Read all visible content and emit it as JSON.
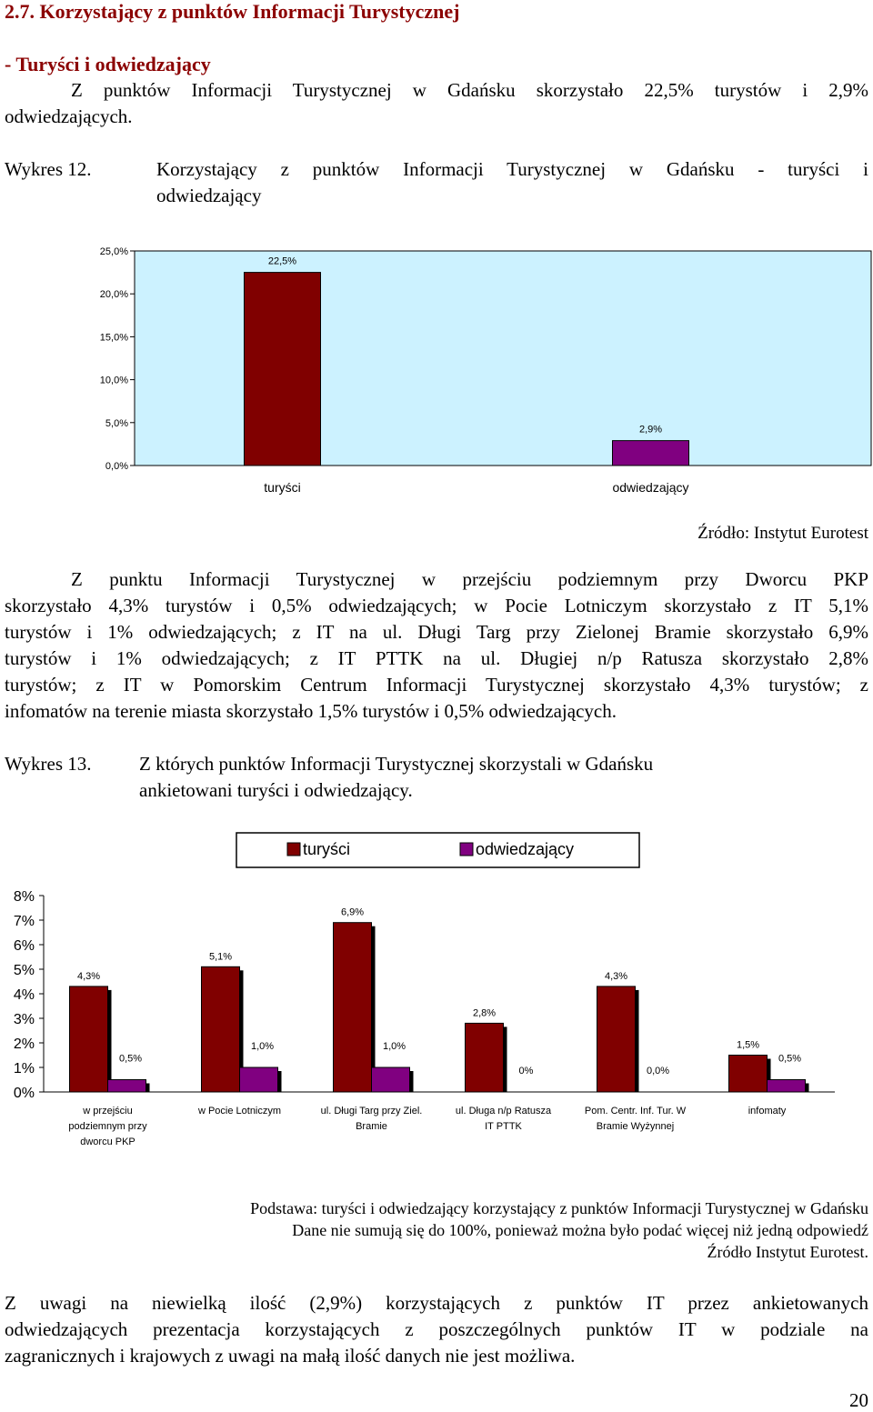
{
  "section": {
    "heading": "2.7. Korzystający z  punktów Informacji Turystycznej",
    "subheading": "- Turyści i odwiedzający",
    "intro_line1": "Z punktów Informacji Turystycznej w Gdańsku skorzystało 22,5% turystów i 2,9%",
    "intro_line2": "odwiedzających."
  },
  "chart12": {
    "label": "Wykres 12.",
    "title_line1": "Korzystający z punktów Informacji Turystycznej w Gdańsku - turyści i",
    "title_line2": "odwiedzający",
    "source": "Źródło: Instytut Eurotest"
  },
  "paragraph2": {
    "lines": [
      "Z punktu Informacji Turystycznej w przejściu podziemnym przy Dworcu PKP",
      "skorzystało 4,3% turystów i 0,5% odwiedzających; w Pocie Lotniczym skorzystało z IT 5,1%",
      "turystów i 1% odwiedzających; z IT na ul. Długi Targ przy Zielonej Bramie skorzystało 6,9%",
      "turystów i 1% odwiedzających; z IT PTTK na ul. Długiej n/p Ratusza skorzystało 2,8%",
      "turystów; z IT w Pomorskim Centrum Informacji Turystycznej skorzystało 4,3% turystów; z",
      "infomatów na terenie miasta skorzystało 1,5% turystów i 0,5% odwiedzających."
    ]
  },
  "chart13": {
    "label": "Wykres 13.",
    "title_line1": "Z których punktów Informacji Turystycznej skorzystali w Gdańsku",
    "title_line2": "ankietowani  turyści i odwiedzający.",
    "note_line1": "Podstawa: turyści i odwiedzający korzystający z punktów Informacji Turystycznej w Gdańsku",
    "note_line2": "Dane nie sumują się do 100%, ponieważ można było podać więcej niż jedną odpowiedź",
    "note_line3": "Źródło Instytut Eurotest."
  },
  "closing": {
    "lines": [
      "Z uwagi na niewielką ilość (2,9%) korzystających z punktów IT przez ankietowanych",
      "odwiedzających prezentacja korzystających z poszczególnych punktów IT w podziale na",
      "zagranicznych i krajowych z uwagi na małą ilość danych nie jest możliwa."
    ]
  },
  "page_number": "20",
  "colors": {
    "turysci": "#800000",
    "odwiedzajacy": "#800080",
    "plot_bg": "#CCF2FF",
    "heading": "#8B0000"
  },
  "chart_data": [
    {
      "type": "bar",
      "categories": [
        "turyści",
        "odwiedzający"
      ],
      "values": [
        22.5,
        2.9
      ],
      "value_labels": [
        "22,5%",
        "2,9%"
      ],
      "colors": [
        "#800000",
        "#800080"
      ],
      "ylim": [
        0,
        25
      ],
      "yticks": [
        0,
        5,
        10,
        15,
        20,
        25
      ],
      "ytick_labels": [
        "0,0%",
        "5,0%",
        "10,0%",
        "15,0%",
        "20,0%",
        "25,0%"
      ],
      "grid": false
    },
    {
      "type": "bar",
      "categories": [
        [
          "w przejściu",
          "podziemnym przy",
          "dworcu PKP"
        ],
        [
          "w Pocie Lotniczym"
        ],
        [
          "ul. Długi Targ przy Ziel.",
          "Bramie"
        ],
        [
          "ul. Długa n/p Ratusza",
          "IT PTTK"
        ],
        [
          "Pom. Centr. Inf. Tur. W",
          "Bramie Wyżynnej"
        ],
        [
          "infomaty"
        ]
      ],
      "series": [
        {
          "name": "turyści",
          "color": "#800000",
          "values": [
            4.3,
            5.1,
            6.9,
            2.8,
            4.3,
            1.5
          ],
          "labels": [
            "4,3%",
            "5,1%",
            "6,9%",
            "2,8%",
            "4,3%",
            "1,5%"
          ]
        },
        {
          "name": "odwiedzający",
          "color": "#800080",
          "values": [
            0.5,
            1.0,
            1.0,
            0,
            0,
            0.5
          ],
          "labels": [
            "0,5%",
            "1,0%",
            "1,0%",
            "0%",
            "0,0%",
            "0,5%"
          ]
        }
      ],
      "ylim": [
        0,
        8
      ],
      "yticks": [
        0,
        1,
        2,
        3,
        4,
        5,
        6,
        7,
        8
      ],
      "ytick_labels": [
        "0%",
        "1%",
        "2%",
        "3%",
        "4%",
        "5%",
        "6%",
        "7%",
        "8%"
      ],
      "legend": "top",
      "grid": false
    }
  ]
}
